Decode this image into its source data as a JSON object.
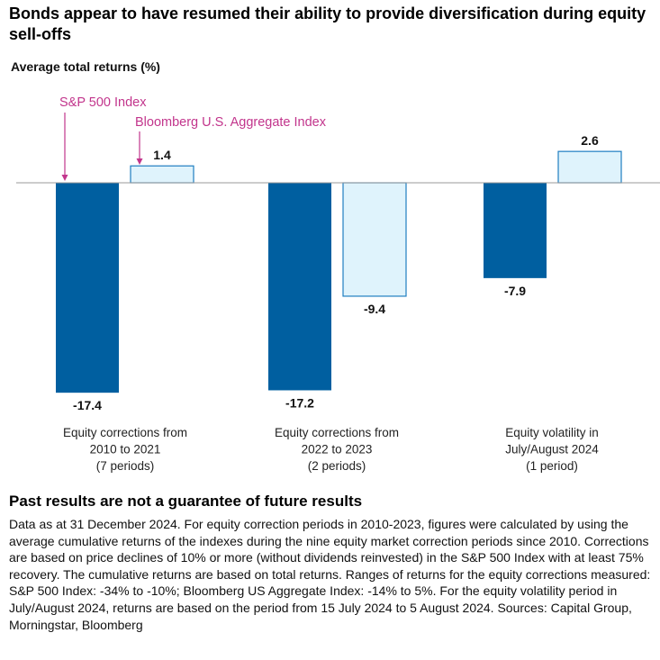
{
  "title": "Bonds appear to have resumed their ability to provide diversification during equity sell-offs",
  "colors": {
    "sp500": "#005FA0",
    "aggregate_fill": "#DFF3FC",
    "aggregate_stroke": "#1F7EC1",
    "annotation": "#C2358C",
    "baseline": "#999999"
  },
  "chart_data": {
    "type": "bar",
    "ylabel": "Average total returns (%)",
    "categories": [
      [
        "Equity corrections from",
        "2010 to 2021",
        "(7 periods)"
      ],
      [
        "Equity corrections from",
        "2022 to 2023",
        "(2 periods)"
      ],
      [
        "Equity volatility in",
        "July/August 2024",
        "(1 period)"
      ]
    ],
    "series": [
      {
        "name": "S&P 500 Index",
        "values": [
          -17.4,
          -17.2,
          -7.9
        ]
      },
      {
        "name": "Bloomberg U.S. Aggregate Index",
        "values": [
          1.4,
          -9.4,
          2.6
        ]
      }
    ],
    "data_labels": [
      [
        "-17.4",
        "1.4"
      ],
      [
        "-17.2",
        "-9.4"
      ],
      [
        "-7.9",
        "2.6"
      ]
    ],
    "grid": false,
    "legend": "annotations above first group"
  },
  "footer": {
    "heading": "Past results are not a guarantee of future results",
    "note": "Data as at 31 December 2024. For equity correction periods in 2010-2023, figures were calculated by using the average cumulative returns of the indexes during the nine equity market correction periods since 2010. Corrections are based on price declines of 10% or more (without dividends reinvested) in the S&P 500 Index with at least 75% recovery. The cumulative returns are based on total returns. Ranges of returns for the equity corrections measured: S&P 500 Index: -34% to -10%; Bloomberg US Aggregate Index: -14% to 5%. For the equity volatility period in July/August 2024, returns are based on the period from 15 July 2024 to 5 August 2024. Sources: Capital Group, Morningstar, Bloomberg"
  }
}
